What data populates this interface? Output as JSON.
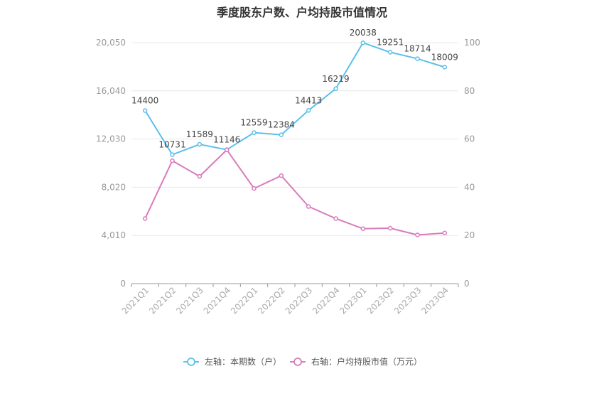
{
  "chart_data": {
    "type": "line",
    "title": "季度股东户数、户均持股市值情况",
    "categories": [
      "2021Q1",
      "2021Q2",
      "2021Q3",
      "2021Q4",
      "2022Q1",
      "2022Q2",
      "2022Q3",
      "2022Q4",
      "2023Q1",
      "2023Q2",
      "2023Q3",
      "2023Q4"
    ],
    "left_axis": {
      "ticks": [
        "0",
        "4,010",
        "8,020",
        "12,030",
        "16,040",
        "20,050"
      ],
      "ylim": [
        0,
        20050
      ]
    },
    "right_axis": {
      "ticks": [
        "0",
        "20",
        "40",
        "60",
        "80",
        "100"
      ],
      "ylim": [
        0,
        100
      ]
    },
    "grid": true,
    "legend_position": "bottom",
    "series": [
      {
        "name": "左轴：本期数（户）",
        "axis": "left",
        "color": "#5bc0eb",
        "values": [
          14400,
          10731,
          11589,
          11146,
          12559,
          12384,
          14413,
          16219,
          20038,
          19251,
          18714,
          18009
        ],
        "labels": [
          "14400",
          "10731",
          "11589",
          "11146",
          "12559",
          "12384",
          "14413",
          "16219",
          "20038",
          "19251",
          "18714",
          "18009"
        ]
      },
      {
        "name": "右轴：户均持股市值（万元）",
        "axis": "right",
        "color": "#d97bbd",
        "values": [
          27.0,
          51.0,
          44.5,
          55.5,
          39.5,
          44.8,
          32.0,
          27.0,
          22.8,
          23.0,
          20.2,
          21.0
        ]
      }
    ]
  }
}
